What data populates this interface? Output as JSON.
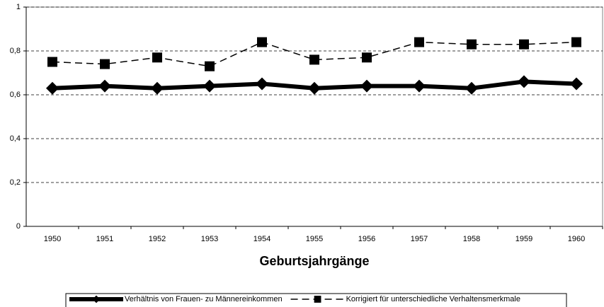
{
  "chart_data": {
    "type": "line",
    "x_label": "Geburtsjahrgänge",
    "categories": [
      "1950",
      "1951",
      "1952",
      "1953",
      "1954",
      "1955",
      "1956",
      "1957",
      "1958",
      "1959",
      "1960"
    ],
    "series": [
      {
        "name": "Verhältnis von Frauen- zu Männereinkommen",
        "color": "#000000",
        "line_style": "solid",
        "marker": "diamond",
        "values": [
          0.63,
          0.64,
          0.63,
          0.64,
          0.65,
          0.63,
          0.64,
          0.64,
          0.63,
          0.66,
          0.65
        ]
      },
      {
        "name": "Korrigiert für unterschiedliche Verhaltensmerkmale",
        "color": "#000000",
        "line_style": "dashed",
        "marker": "square",
        "values": [
          0.75,
          0.74,
          0.77,
          0.73,
          0.84,
          0.76,
          0.77,
          0.84,
          0.83,
          0.83,
          0.84
        ]
      }
    ],
    "ylim": [
      0,
      1
    ],
    "yticks": [
      0,
      {
        "value": 0.2,
        "label": "0,2"
      },
      {
        "value": 0.4,
        "label": "0,4"
      },
      {
        "value": 0.6,
        "label": "0,6"
      },
      {
        "value": 0.8,
        "label": "0,8"
      },
      1
    ],
    "grid": true,
    "legend": "bottom"
  }
}
